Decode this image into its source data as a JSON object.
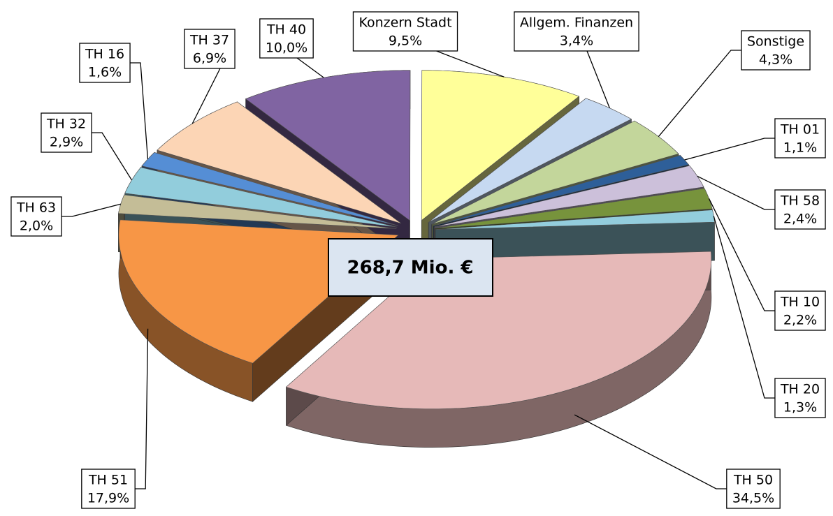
{
  "chart_data": {
    "type": "pie",
    "categories": [
      "Konzern Stadt",
      "Allgem. Finanzen",
      "Sonstige",
      "TH 01",
      "TH 58",
      "TH 10",
      "TH 20",
      "TH 50",
      "TH 51",
      "TH 63",
      "TH 32",
      "TH 16",
      "TH 37",
      "TH 40"
    ],
    "values": [
      9.5,
      3.4,
      4.3,
      1.1,
      2.4,
      2.2,
      1.3,
      34.5,
      17.9,
      2.0,
      2.9,
      1.6,
      6.9,
      10.0
    ],
    "value_labels": [
      "9,5%",
      "3,4%",
      "4,3%",
      "1,1%",
      "2,4%",
      "2,2%",
      "1,3%",
      "34,5%",
      "17,9%",
      "2,0%",
      "2,9%",
      "1,6%",
      "6,9%",
      "10,0%"
    ],
    "colors": [
      "#ffff99",
      "#c6d9f1",
      "#c3d69b",
      "#2e5f99",
      "#ccc0da",
      "#77933c",
      "#93cddd",
      "#e6b9b8",
      "#f79646",
      "#c4bd97",
      "#92cddc",
      "#558ed5",
      "#fcd5b5",
      "#8064a2"
    ],
    "center_label": "268,7 Mio. €"
  }
}
